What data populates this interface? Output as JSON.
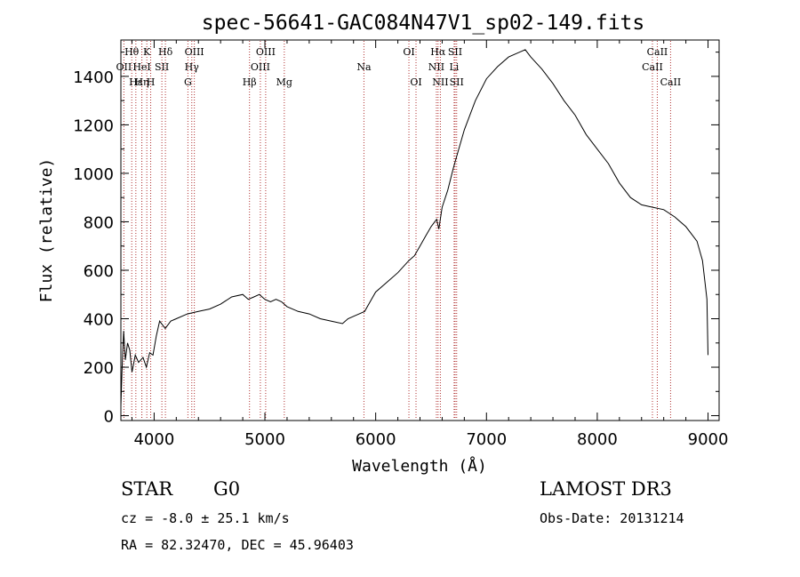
{
  "chart_data": {
    "type": "line",
    "title": "spec-56641-GAC084N47V1_sp02-149.fits",
    "xlabel": "Wavelength (Å)",
    "ylabel": "Flux (relative)",
    "xlim": [
      3700,
      9100
    ],
    "ylim": [
      -20,
      1550
    ],
    "x_ticks": [
      4000,
      5000,
      6000,
      7000,
      8000,
      9000
    ],
    "y_ticks": [
      0,
      200,
      400,
      600,
      800,
      1000,
      1200,
      1400
    ],
    "grid": false,
    "series": [
      {
        "name": "flux",
        "x": [
          3700,
          3710,
          3725,
          3740,
          3760,
          3780,
          3800,
          3830,
          3860,
          3900,
          3930,
          3960,
          3990,
          4020,
          4050,
          4100,
          4150,
          4200,
          4300,
          4400,
          4500,
          4600,
          4700,
          4800,
          4850,
          4900,
          4950,
          5000,
          5050,
          5100,
          5150,
          5200,
          5300,
          5400,
          5500,
          5600,
          5700,
          5750,
          5800,
          5850,
          5900,
          5950,
          6000,
          6100,
          6200,
          6300,
          6350,
          6400,
          6450,
          6500,
          6550,
          6570,
          6600,
          6650,
          6700,
          6750,
          6800,
          6900,
          7000,
          7100,
          7200,
          7300,
          7350,
          7400,
          7500,
          7600,
          7700,
          7800,
          7900,
          8000,
          8100,
          8200,
          8300,
          8400,
          8500,
          8600,
          8700,
          8800,
          8900,
          8950,
          8990,
          9000
        ],
        "y": [
          40,
          180,
          350,
          230,
          300,
          270,
          180,
          250,
          220,
          240,
          200,
          260,
          250,
          330,
          390,
          360,
          390,
          400,
          420,
          430,
          440,
          460,
          490,
          500,
          480,
          490,
          500,
          480,
          470,
          480,
          470,
          450,
          430,
          420,
          400,
          390,
          380,
          400,
          410,
          420,
          430,
          470,
          510,
          550,
          590,
          640,
          660,
          700,
          740,
          780,
          810,
          770,
          860,
          930,
          1020,
          1100,
          1180,
          1300,
          1390,
          1440,
          1480,
          1500,
          1510,
          1480,
          1430,
          1370,
          1300,
          1240,
          1160,
          1100,
          1040,
          960,
          900,
          870,
          860,
          850,
          820,
          780,
          720,
          640,
          480,
          250
        ]
      }
    ],
    "lines": [
      {
        "name": "Hθ",
        "x": 3798,
        "row": 0
      },
      {
        "name": "OII",
        "x": 3727,
        "row": 1
      },
      {
        "name": "Hε",
        "x": 3835,
        "row": 2
      },
      {
        "name": "Hη",
        "x": 3889,
        "row": 2
      },
      {
        "name": "K",
        "x": 3934,
        "row": 0
      },
      {
        "name": "HeI",
        "x": 3889,
        "row": 1
      },
      {
        "name": "SII",
        "x": 4070,
        "row": 1
      },
      {
        "name": "H",
        "x": 3969,
        "row": 2
      },
      {
        "name": "Hδ",
        "x": 4102,
        "row": 0
      },
      {
        "name": "OIII",
        "x": 4363,
        "row": 0
      },
      {
        "name": "Hγ",
        "x": 4340,
        "row": 1
      },
      {
        "name": "G",
        "x": 4305,
        "row": 2
      },
      {
        "name": "Hβ",
        "x": 4861,
        "row": 2
      },
      {
        "name": "OIII",
        "x": 4959,
        "row": 1
      },
      {
        "name": "OIII",
        "x": 5007,
        "row": 0
      },
      {
        "name": "Mg",
        "x": 5175,
        "row": 2
      },
      {
        "name": "Na",
        "x": 5894,
        "row": 1
      },
      {
        "name": "OI",
        "x": 6300,
        "row": 0
      },
      {
        "name": "OI",
        "x": 6364,
        "row": 2
      },
      {
        "name": "Hα",
        "x": 6563,
        "row": 0
      },
      {
        "name": "NII",
        "x": 6548,
        "row": 1
      },
      {
        "name": "NII",
        "x": 6584,
        "row": 2
      },
      {
        "name": "SII",
        "x": 6717,
        "row": 0
      },
      {
        "name": "Li",
        "x": 6708,
        "row": 1
      },
      {
        "name": "SII",
        "x": 6731,
        "row": 2
      },
      {
        "name": "CaII",
        "x": 8542,
        "row": 0
      },
      {
        "name": "CaII",
        "x": 8498,
        "row": 1
      },
      {
        "name": "CaII",
        "x": 8662,
        "row": 2
      }
    ]
  },
  "info": {
    "object_class": "STAR",
    "subclass": "G0",
    "survey": "LAMOST DR3",
    "redshift": "cz = -8.0 ± 25.1 km/s",
    "obs_date": "Obs-Date: 20131214",
    "coords": "RA =  82.32470, DEC =  45.96403"
  },
  "colors": {
    "line": "#000000",
    "marker": "#b03030",
    "background": "#ffffff"
  }
}
